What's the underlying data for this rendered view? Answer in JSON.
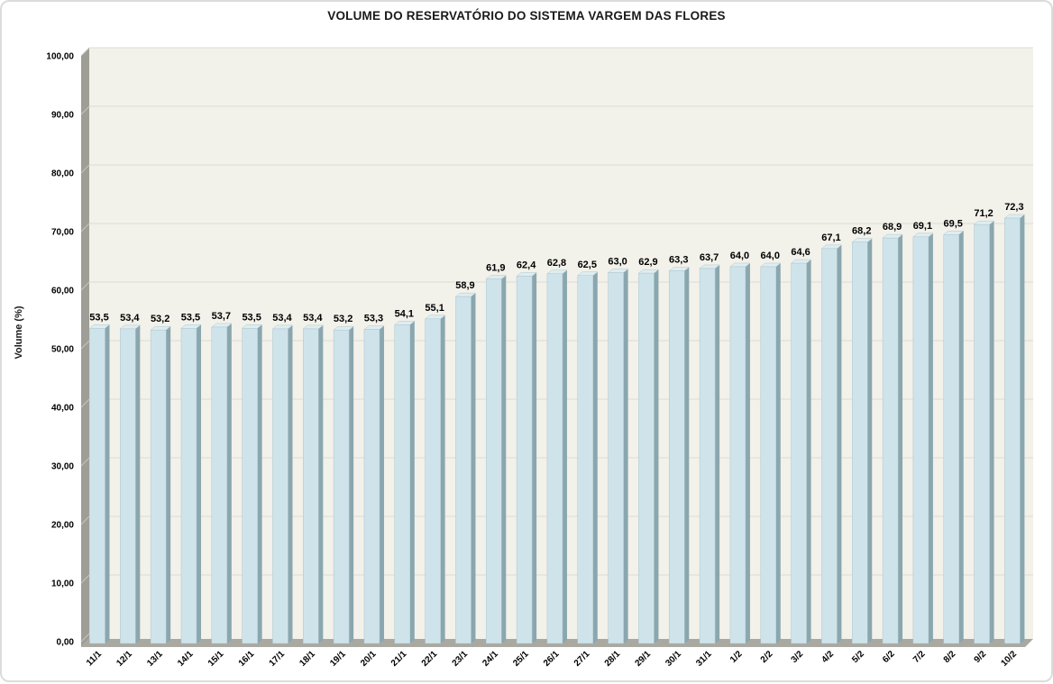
{
  "chart_data": {
    "type": "bar",
    "title": "VOLUME DO RESERVATÓRIO DO SISTEMA VARGEM DAS FLORES",
    "ylabel": "Volume (%)",
    "xlabel": "",
    "ylim": [
      0,
      100
    ],
    "ytick_step": 10,
    "ytick_labels": [
      "0,00",
      "10,00",
      "20,00",
      "30,00",
      "40,00",
      "50,00",
      "60,00",
      "70,00",
      "80,00",
      "90,00",
      "100,00"
    ],
    "grid": true,
    "legend_position": "none",
    "style_3d": true,
    "categories": [
      "11/1",
      "12/1",
      "13/1",
      "14/1",
      "15/1",
      "16/1",
      "17/1",
      "18/1",
      "19/1",
      "20/1",
      "21/1",
      "22/1",
      "23/1",
      "24/1",
      "25/1",
      "26/1",
      "27/1",
      "28/1",
      "29/1",
      "30/1",
      "31/1",
      "1/2",
      "2/2",
      "3/2",
      "4/2",
      "5/2",
      "6/2",
      "7/2",
      "8/2",
      "9/2",
      "10/2"
    ],
    "values": [
      53.5,
      53.4,
      53.2,
      53.5,
      53.7,
      53.5,
      53.4,
      53.4,
      53.2,
      53.3,
      54.1,
      55.1,
      58.9,
      61.9,
      62.4,
      62.8,
      62.5,
      63.0,
      62.9,
      63.3,
      63.7,
      64.0,
      64.0,
      64.6,
      67.1,
      68.2,
      68.9,
      69.1,
      69.5,
      71.2,
      72.3
    ],
    "data_labels": [
      "53,5",
      "53,4",
      "53,2",
      "53,5",
      "53,7",
      "53,5",
      "53,4",
      "53,4",
      "53,2",
      "53,3",
      "54,1",
      "55,1",
      "58,9",
      "61,9",
      "62,4",
      "62,8",
      "62,5",
      "63,0",
      "62,9",
      "63,3",
      "63,7",
      "64,0",
      "64,0",
      "64,6",
      "67,1",
      "68,2",
      "68,9",
      "69,1",
      "69,5",
      "71,2",
      "72,3"
    ],
    "colors": {
      "bar_front": "#cfe3ea",
      "bar_side": "#8aa6ae",
      "bar_top": "#dfedf1",
      "bar_edge": "#aec6ce",
      "plot_bg": "#f2f1ea",
      "wall": "#9e9d96",
      "wall_mark": "#c7c6be",
      "floor": "#a9a8a1",
      "gridline": "#ddtbd3",
      "gridline_fix": "#dddbd3",
      "text": "#000000",
      "frame_border": "#dcdcdc"
    }
  }
}
